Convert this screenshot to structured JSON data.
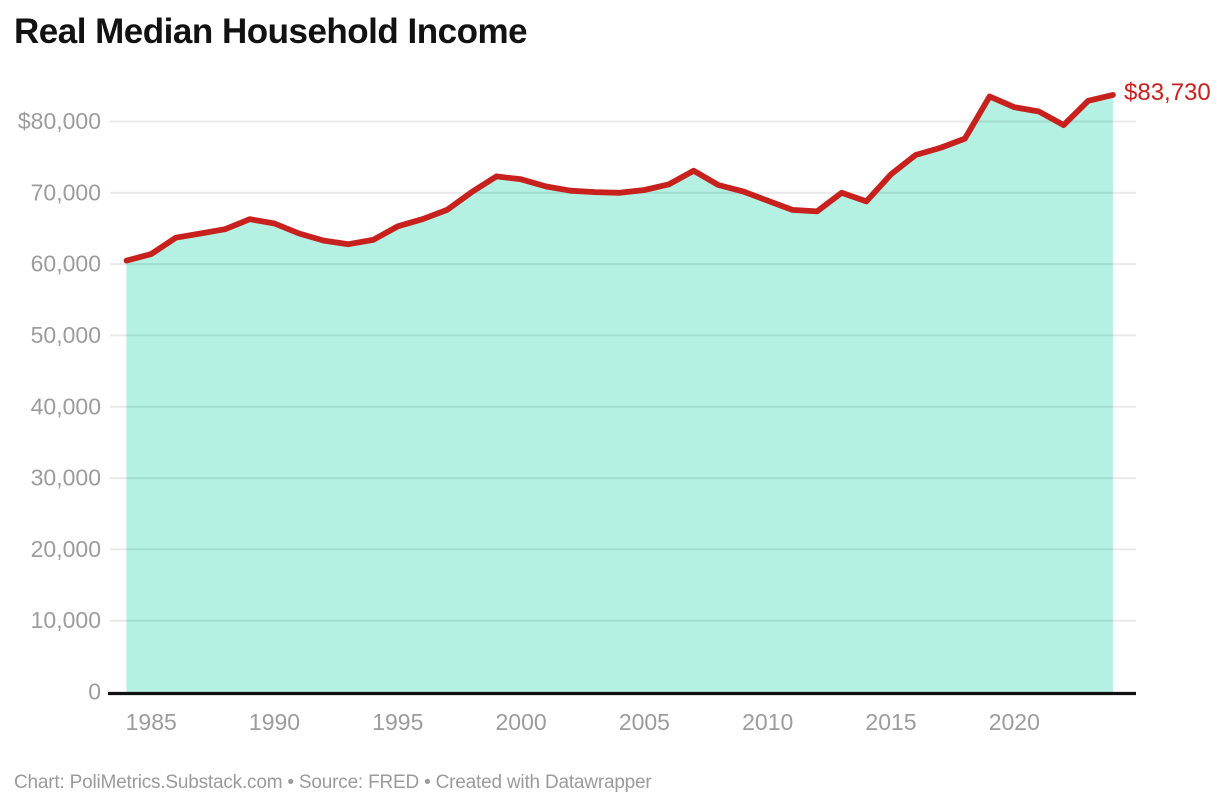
{
  "title": "Real Median Household Income",
  "footer": "Chart: PoliMetrics.Substack.com • Source: FRED • Created with Datawrapper",
  "colors": {
    "line": "#c7201d",
    "area": "#b4f1e3",
    "grid": "rgba(0,0,0,0.085)",
    "axis_line": "#111111",
    "tick_label": "#9c9c9c",
    "title_text": "#121212",
    "footer_text": "#9b9b9b",
    "end_label_text": "#c7201d",
    "background": "#ffffff"
  },
  "chart_data": {
    "type": "area",
    "title": "Real Median Household Income",
    "series_name": "Real Median Household Income",
    "x": [
      1984,
      1985,
      1986,
      1987,
      1988,
      1989,
      1990,
      1991,
      1992,
      1993,
      1994,
      1995,
      1996,
      1997,
      1998,
      1999,
      2000,
      2001,
      2002,
      2003,
      2004,
      2005,
      2006,
      2007,
      2008,
      2009,
      2010,
      2011,
      2012,
      2013,
      2014,
      2015,
      2016,
      2017,
      2018,
      2019,
      2020,
      2021,
      2022,
      2023,
      2024
    ],
    "values": [
      60500,
      61400,
      63700,
      64300,
      64900,
      66300,
      65700,
      64300,
      63300,
      62800,
      63400,
      65300,
      66300,
      67600,
      70100,
      72300,
      71900,
      70900,
      70300,
      70100,
      70000,
      70400,
      71200,
      73100,
      71100,
      70200,
      68900,
      67600,
      67400,
      70000,
      68800,
      72600,
      75300,
      76300,
      77600,
      83500,
      82000,
      81400,
      79500,
      82900,
      83730
    ],
    "last_point_label": "$83,730",
    "xlim": [
      1984,
      2024
    ],
    "ylim": [
      0,
      85000
    ],
    "xticks": [
      1985,
      1990,
      1995,
      2000,
      2005,
      2010,
      2015,
      2020
    ],
    "yticks": [
      0,
      10000,
      20000,
      30000,
      40000,
      50000,
      60000,
      70000,
      80000
    ],
    "ytick_labels": [
      "0",
      "10,000",
      "20,000",
      "30,000",
      "40,000",
      "50,000",
      "60,000",
      "70,000",
      "$80,000"
    ],
    "grid": true,
    "legend_position": "none"
  }
}
